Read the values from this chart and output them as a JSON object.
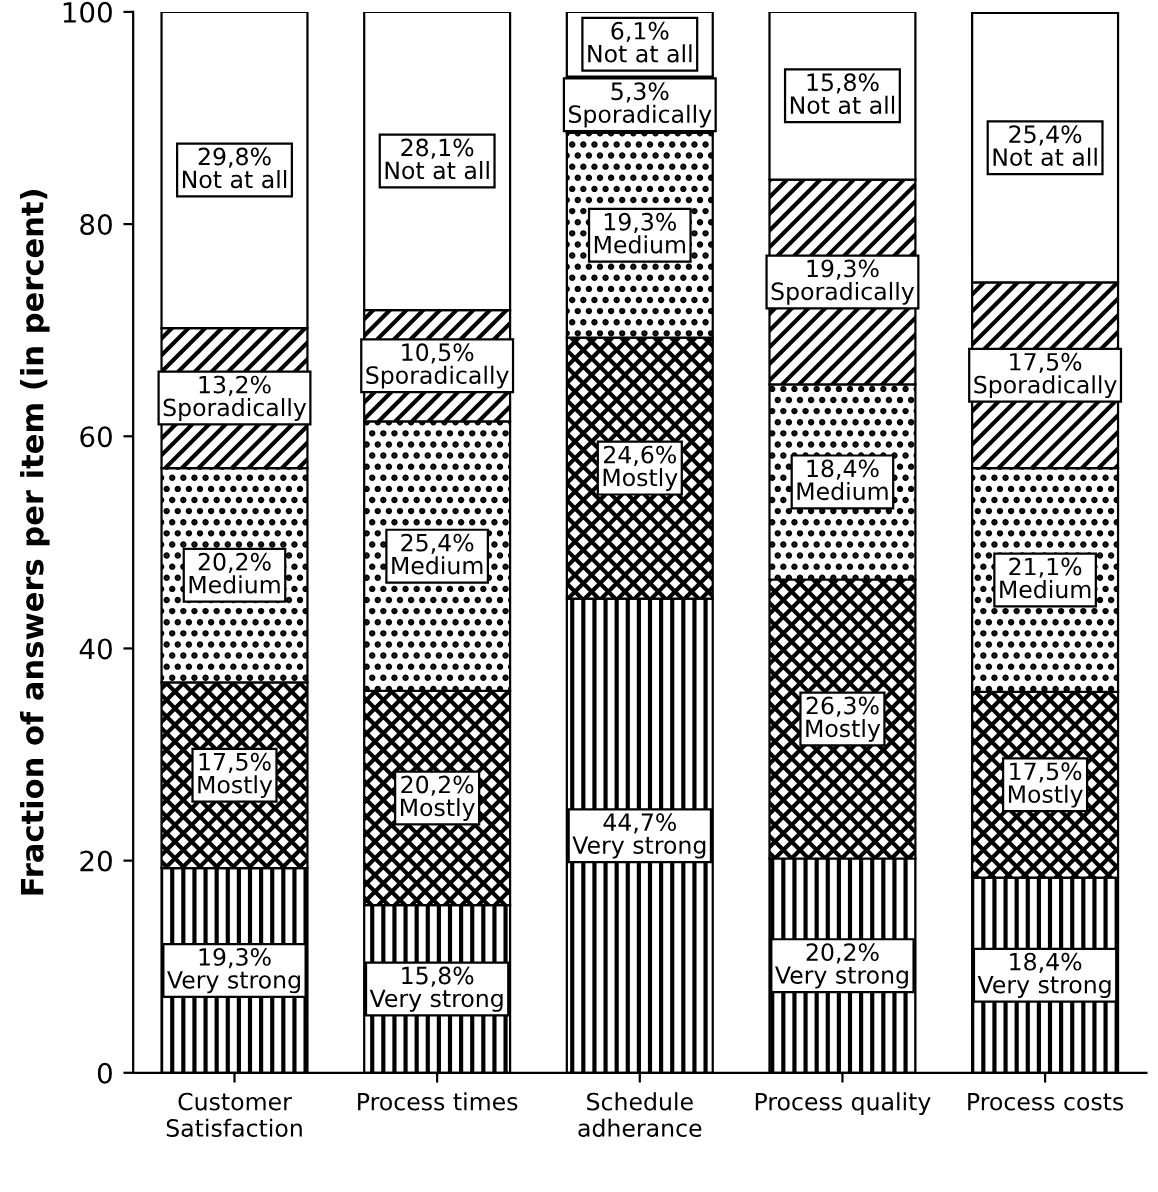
{
  "chart_data": {
    "type": "bar",
    "stacked": true,
    "ylabel": "Fraction of answers per item (in percent)",
    "categories": [
      "Customer\nSatisfaction",
      "Process times",
      "Schedule\nadherance",
      "Process quality",
      "Process costs"
    ],
    "ylim": [
      0,
      100
    ],
    "yticks": [
      0,
      20,
      40,
      60,
      80,
      100
    ],
    "grid": false,
    "legend": false,
    "series": [
      {
        "name": "Very strong",
        "color": "#000000",
        "values": [
          19.3,
          15.8,
          44.7,
          20.2,
          18.4
        ],
        "value_labels": [
          "19,3%",
          "15,8%",
          "44,7%",
          "20,2%",
          "18,4%"
        ]
      },
      {
        "name": "Mostly",
        "color": "#000000",
        "values": [
          17.5,
          20.2,
          24.6,
          26.3,
          17.5
        ],
        "value_labels": [
          "17,5%",
          "20,2%",
          "24,6%",
          "26,3%",
          "17,5%"
        ]
      },
      {
        "name": "Medium",
        "color": "#000000",
        "values": [
          20.2,
          25.4,
          19.3,
          18.4,
          21.1
        ],
        "value_labels": [
          "20,2%",
          "25,4%",
          "19,3%",
          "18,4%",
          "21,1%"
        ]
      },
      {
        "name": "Sporadically",
        "color": "#000000",
        "values": [
          13.2,
          10.5,
          5.3,
          19.3,
          17.5
        ],
        "value_labels": [
          "13,2%",
          "10,5%",
          "5,3%",
          "19,3%",
          "17,5%"
        ]
      },
      {
        "name": "Not at all",
        "color": "#ffffff",
        "values": [
          29.8,
          28.1,
          6.1,
          15.8,
          25.4
        ],
        "value_labels": [
          "29,8%",
          "28,1%",
          "6,1%",
          "15,8%",
          "25,4%"
        ]
      }
    ]
  }
}
